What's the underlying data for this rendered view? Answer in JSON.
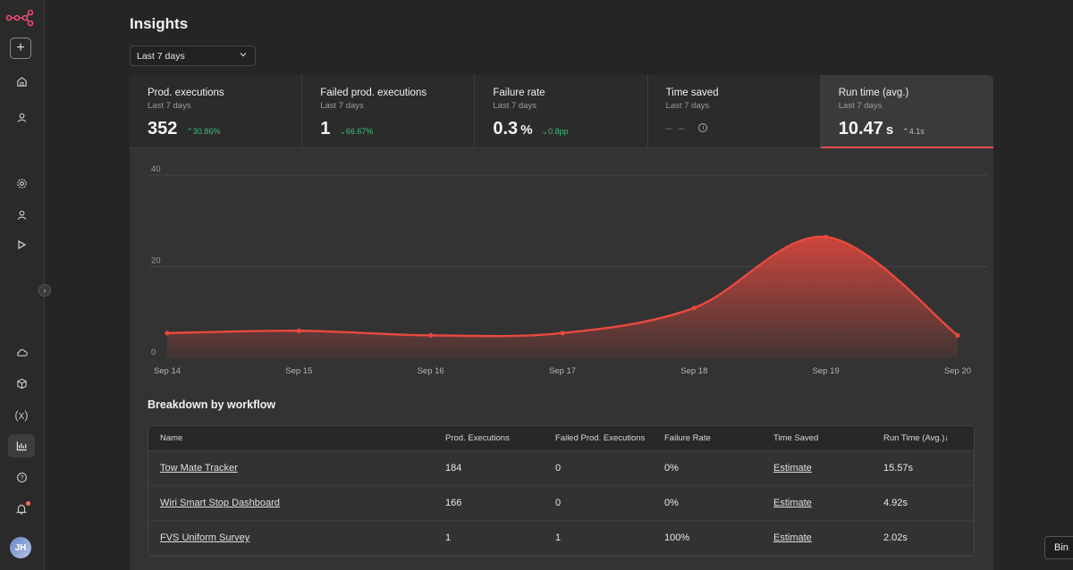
{
  "sidebar": {
    "add_label": "+",
    "avatar_initials": "JH",
    "items": [
      {
        "name": "home"
      },
      {
        "name": "user"
      },
      {
        "name": "settings"
      },
      {
        "name": "user"
      },
      {
        "name": "play"
      },
      {
        "name": "cloud"
      },
      {
        "name": "package"
      },
      {
        "name": "variables",
        "label": "(x)"
      },
      {
        "name": "insights"
      },
      {
        "name": "help",
        "label": "?"
      },
      {
        "name": "bell"
      }
    ]
  },
  "header": {
    "title": "Insights",
    "date_range": "Last 7 days"
  },
  "metrics": [
    {
      "title": "Prod. executions",
      "sub": "Last 7 days",
      "value": "352",
      "unit": "",
      "delta": "30.86%",
      "delta_dir": "up"
    },
    {
      "title": "Failed prod. executions",
      "sub": "Last 7 days",
      "value": "1",
      "unit": "",
      "delta": "66.67%",
      "delta_dir": "down"
    },
    {
      "title": "Failure rate",
      "sub": "Last 7 days",
      "value": "0.3",
      "unit": "%",
      "delta": "0.8pp",
      "delta_dir": "down"
    },
    {
      "title": "Time saved",
      "sub": "Last 7 days",
      "value": "",
      "unit": "",
      "delta": "",
      "delta_dir": ""
    },
    {
      "title": "Run time (avg.)",
      "sub": "Last 7 days",
      "value": "10.47",
      "unit": "s",
      "delta": "4.1s",
      "delta_dir": "up"
    }
  ],
  "chart_data": {
    "type": "area",
    "x": [
      "Sep 14",
      "Sep 15",
      "Sep 16",
      "Sep 17",
      "Sep 18",
      "Sep 19",
      "Sep 20"
    ],
    "series": [
      {
        "values": [
          5.5,
          6,
          5,
          5.5,
          11,
          26.5,
          5
        ]
      }
    ],
    "yticks": [
      0,
      20,
      40
    ],
    "ylim": [
      0,
      40
    ],
    "grid": true,
    "color": "#e8493f"
  },
  "breakdown": {
    "title": "Breakdown by workflow",
    "columns": [
      "Name",
      "Prod. Executions",
      "Failed Prod. Executions",
      "Failure Rate",
      "Time Saved",
      "Run Time (Avg.)↓"
    ],
    "rows": [
      {
        "name": "Tow Mate Tracker",
        "prod": "184",
        "failed": "0",
        "rate": "0%",
        "saved": "Estimate",
        "runtime": "15.57s"
      },
      {
        "name": "Wiri Smart Stop Dashboard",
        "prod": "166",
        "failed": "0",
        "rate": "0%",
        "saved": "Estimate",
        "runtime": "4.92s"
      },
      {
        "name": "FVS Uniform Survey",
        "prod": "1",
        "failed": "1",
        "rate": "100%",
        "saved": "Estimate",
        "runtime": "2.02s"
      }
    ]
  },
  "tooltip": "Bin"
}
